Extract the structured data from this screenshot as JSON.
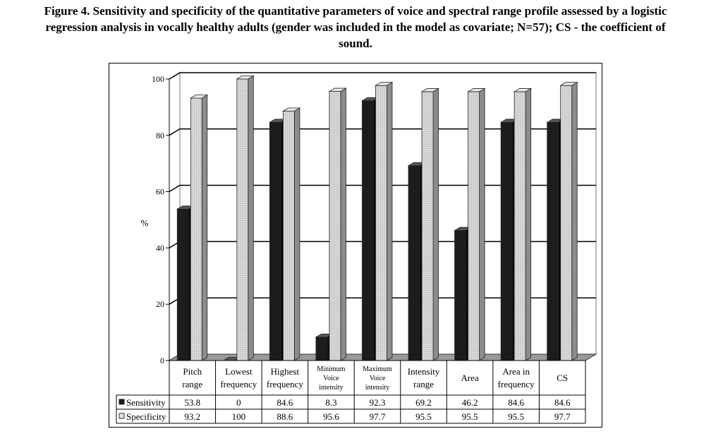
{
  "figure": {
    "title_lines": [
      "Figure 4. Sensitivity and specificity of the quantitative parameters of voice and spectral range profile assessed by a logistic",
      "regression analysis in vocally healthy adults (gender was included in the model as covariate; N=57); CS - the coefficient of",
      "sound."
    ]
  },
  "chart_data": {
    "type": "bar",
    "title": "",
    "ylabel": "%",
    "xlabel": "",
    "ylim": [
      0,
      100
    ],
    "yticks": [
      0,
      20,
      40,
      60,
      80,
      100
    ],
    "grid": true,
    "legend_placement": "data table (left)",
    "categories": [
      [
        "Pitch",
        "range"
      ],
      [
        "Lowest",
        "frequency"
      ],
      [
        "Highest",
        "frequency"
      ],
      [
        "Minimum",
        "Voice",
        "intensity"
      ],
      [
        "Maximum",
        "Voice",
        "intensity"
      ],
      [
        "Intensity",
        "range"
      ],
      [
        "Area"
      ],
      [
        "Area in",
        "frequency"
      ],
      [
        "CS"
      ]
    ],
    "series": [
      {
        "name": "Sensitivity",
        "color": "#1c1c1c",
        "values": [
          53.8,
          0,
          84.6,
          8.3,
          92.3,
          69.2,
          46.2,
          84.6,
          84.6
        ],
        "labels": [
          "53.8",
          "0",
          "84.6",
          "8.3",
          "92.3",
          "69.2",
          "46.2",
          "84.6",
          "84.6"
        ]
      },
      {
        "name": "Specificity",
        "color": "#c8c8c8",
        "values": [
          93.2,
          100,
          88.6,
          95.6,
          97.7,
          95.5,
          95.5,
          95.5,
          97.7
        ],
        "labels": [
          "93.2",
          "100",
          "88.6",
          "95.6",
          "97.7",
          "95.5",
          "95.5",
          "95.5",
          "97.7"
        ]
      }
    ]
  }
}
